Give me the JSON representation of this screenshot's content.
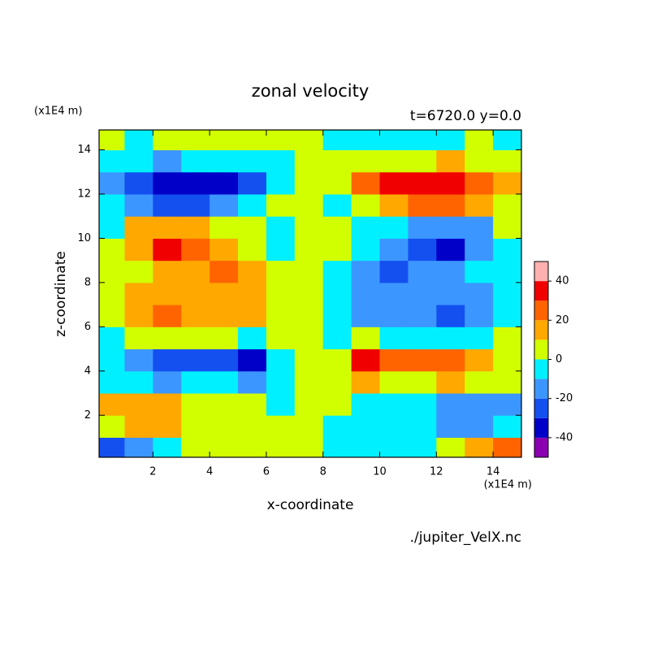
{
  "chart_data": {
    "type": "contour",
    "title": "zonal velocity",
    "subtitle": "t=6720.0 y=0.0",
    "x_label": "x-coordinate",
    "y_label": "z-coordinate",
    "x_units": "(x1E4 m)",
    "y_units": "(x1E4 m)",
    "source": "./jupiter_VelX.nc",
    "xlim": [
      0.1,
      15
    ],
    "ylim": [
      0.1,
      14.9
    ],
    "xticks": [
      2,
      4,
      6,
      8,
      10,
      12,
      14
    ],
    "yticks": [
      2,
      4,
      6,
      8,
      10,
      12,
      14
    ],
    "x": [
      0.5,
      1.5,
      2.5,
      3.5,
      4.5,
      5.5,
      6.5,
      7.5,
      8.5,
      9.5,
      10.5,
      11.5,
      12.5,
      13.5,
      14.5
    ],
    "y": [
      0.5,
      1.5,
      2.5,
      3.5,
      4.5,
      5.5,
      6.5,
      7.5,
      8.5,
      9.5,
      10.5,
      11.5,
      12.5,
      13.5,
      14.5
    ],
    "z": [
      [
        -25,
        -15,
        -5,
        3,
        3,
        3,
        3,
        1,
        -3,
        -3,
        -3,
        -3,
        5,
        15,
        25
      ],
      [
        5,
        12,
        15,
        5,
        3,
        3,
        3,
        1,
        -3,
        -3,
        -3,
        -5,
        -15,
        -12,
        -5
      ],
      [
        15,
        18,
        12,
        5,
        5,
        3,
        -5,
        1,
        5,
        -3,
        -5,
        -5,
        -12,
        -18,
        -15
      ],
      [
        -5,
        -8,
        -18,
        -5,
        -5,
        -15,
        -5,
        1,
        5,
        15,
        5,
        5,
        18,
        8,
        5
      ],
      [
        -5,
        -15,
        -25,
        -28,
        -25,
        -35,
        -5,
        1,
        5,
        35,
        25,
        28,
        25,
        15,
        5
      ],
      [
        -5,
        3,
        5,
        5,
        5,
        -3,
        3,
        1,
        -3,
        3,
        -5,
        -5,
        -5,
        -3,
        5
      ],
      [
        3,
        12,
        28,
        15,
        15,
        15,
        5,
        1,
        -5,
        -15,
        -15,
        -15,
        -28,
        -12,
        -3
      ],
      [
        5,
        15,
        12,
        15,
        18,
        15,
        5,
        1,
        -5,
        -15,
        -18,
        -15,
        -12,
        -15,
        -5
      ],
      [
        5,
        5,
        12,
        18,
        28,
        15,
        5,
        1,
        -5,
        -15,
        -28,
        -18,
        -12,
        -5,
        -5
      ],
      [
        3,
        18,
        32,
        25,
        18,
        5,
        -3,
        1,
        3,
        -5,
        -18,
        -25,
        -32,
        -18,
        -3
      ],
      [
        -3,
        12,
        18,
        15,
        3,
        5,
        -3,
        1,
        3,
        -5,
        -3,
        -15,
        -18,
        -12,
        3
      ],
      [
        -5,
        -15,
        -25,
        -22,
        -12,
        -5,
        3,
        1,
        -3,
        5,
        12,
        22,
        25,
        15,
        5
      ],
      [
        -15,
        -25,
        -35,
        -38,
        -32,
        -22,
        -8,
        1,
        8,
        22,
        32,
        38,
        35,
        25,
        15
      ],
      [
        -5,
        -8,
        -12,
        -8,
        -5,
        -5,
        -3,
        1,
        3,
        5,
        5,
        8,
        12,
        8,
        5
      ],
      [
        3,
        -3,
        3,
        3,
        3,
        3,
        3,
        1,
        -3,
        -3,
        -3,
        -3,
        -3,
        3,
        -3
      ]
    ],
    "levels": [
      -50,
      -40,
      -30,
      -20,
      -10,
      0,
      10,
      20,
      30,
      40,
      50
    ],
    "colors": [
      "#8a00b0",
      "#0000c8",
      "#1450f0",
      "#3c96ff",
      "#00f0ff",
      "#d2ff00",
      "#ffa800",
      "#ff6400",
      "#f00000",
      "#ffb0b0"
    ],
    "colorbar_ticks": [
      -40,
      -20,
      0,
      20,
      40
    ]
  }
}
